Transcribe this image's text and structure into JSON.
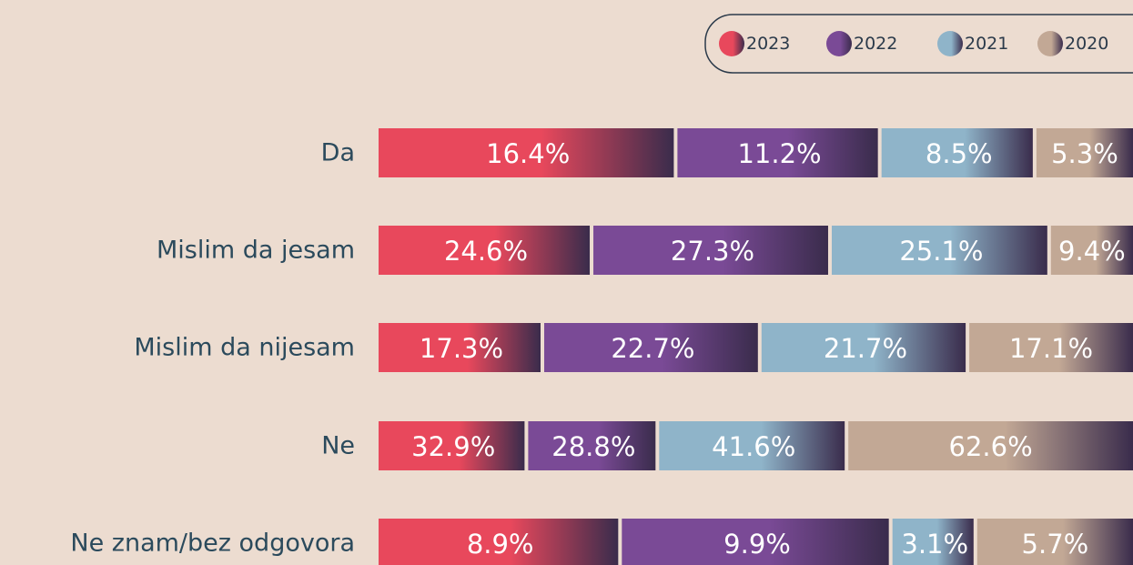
{
  "chart_data": {
    "type": "stacked-bar-normalized",
    "categories": [
      "Da",
      "Mislim da jesam",
      "Mislim da nijesam",
      "Ne",
      "Ne znam/bez odgovora"
    ],
    "series": [
      {
        "name": "2023",
        "color": "#e8485c",
        "values": [
          16.4,
          24.6,
          17.3,
          32.9,
          8.9
        ],
        "value_labels": [
          "16.4%",
          "24.6%",
          "17.3%",
          "32.9%",
          "8.9%"
        ]
      },
      {
        "name": "2022",
        "color": "#7a4a96",
        "values": [
          11.2,
          27.3,
          22.7,
          28.8,
          9.9
        ],
        "value_labels": [
          "11.2%",
          "27.3%",
          "22.7%",
          "28.8%",
          "9.9%"
        ]
      },
      {
        "name": "2021",
        "color": "#8fb4c9",
        "values": [
          8.5,
          25.1,
          21.7,
          41.6,
          3.1
        ],
        "value_labels": [
          "8.5%",
          "25.1%",
          "21.7%",
          "41.6%",
          "3.1%"
        ]
      },
      {
        "name": "2020",
        "color": "#c2a895",
        "values": [
          5.3,
          9.4,
          17.1,
          62.6,
          5.7
        ],
        "value_labels": [
          "5.3%",
          "9.4%",
          "17.1%",
          "62.6%",
          "5.7%"
        ]
      }
    ],
    "legend": "top-right"
  }
}
